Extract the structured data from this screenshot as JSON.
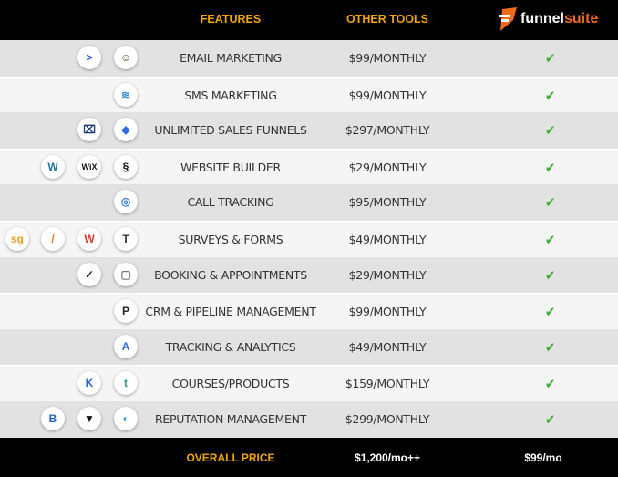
{
  "header": {
    "features": "FEATURES",
    "other_tools": "OTHER TOOLS",
    "brand_a": "funnel",
    "brand_b": "suite"
  },
  "colors": {
    "accent": "#f0a500",
    "brand_orange": "#f26a1b",
    "check": "#3cad2f",
    "row_odd": "#e2e2e2",
    "row_even": "#f5f5f5"
  },
  "rows": [
    {
      "feature": "EMAIL MARKETING",
      "price": "$99/MONTHLY",
      "included": true,
      "icons": [
        "activecampaign-icon",
        "mailchimp-icon"
      ]
    },
    {
      "feature": "SMS MARKETING",
      "price": "$99/MONTHLY",
      "included": true,
      "icons": [
        "sms-chevrons-icon"
      ]
    },
    {
      "feature": "UNLIMITED SALES FUNNELS",
      "price": "$297/MONTHLY",
      "included": true,
      "icons": [
        "clickfunnels-icon",
        "leadpages-icon"
      ]
    },
    {
      "feature": "WEBSITE BUILDER",
      "price": "$29/MONTHLY",
      "included": true,
      "icons": [
        "wordpress-icon",
        "wix-icon",
        "squarespace-icon"
      ]
    },
    {
      "feature": "CALL TRACKING",
      "price": "$95/MONTHLY",
      "included": true,
      "icons": [
        "callrail-icon"
      ]
    },
    {
      "feature": "SURVEYS & FORMS",
      "price": "$49/MONTHLY",
      "included": true,
      "icons": [
        "surveygizmo-icon",
        "jotform-icon",
        "wufoo-icon",
        "typeform-icon"
      ]
    },
    {
      "feature": "BOOKING & APPOINTMENTS",
      "price": "$29/MONTHLY",
      "included": true,
      "icons": [
        "acuity-icon",
        "calendar-icon"
      ]
    },
    {
      "feature": "CRM & PIPELINE MANAGEMENT",
      "price": "$99/MONTHLY",
      "included": true,
      "icons": [
        "pipedrive-icon"
      ]
    },
    {
      "feature": "TRACKING & ANALYTICS",
      "price": "$49/MONTHLY",
      "included": true,
      "icons": [
        "analytics-icon"
      ]
    },
    {
      "feature": "COURSES/PRODUCTS",
      "price": "$159/MONTHLY",
      "included": true,
      "icons": [
        "kajabi-icon",
        "teachable-icon"
      ]
    },
    {
      "feature": "REPUTATION MANAGEMENT",
      "price": "$299/MONTHLY",
      "included": true,
      "icons": [
        "birdeye-icon",
        "podium-icon",
        "reputation-icon"
      ]
    }
  ],
  "footer": {
    "label": "OVERALL PRICE",
    "other_total": "$1,200/mo++",
    "funnelsuite_price": "$99/mo"
  }
}
